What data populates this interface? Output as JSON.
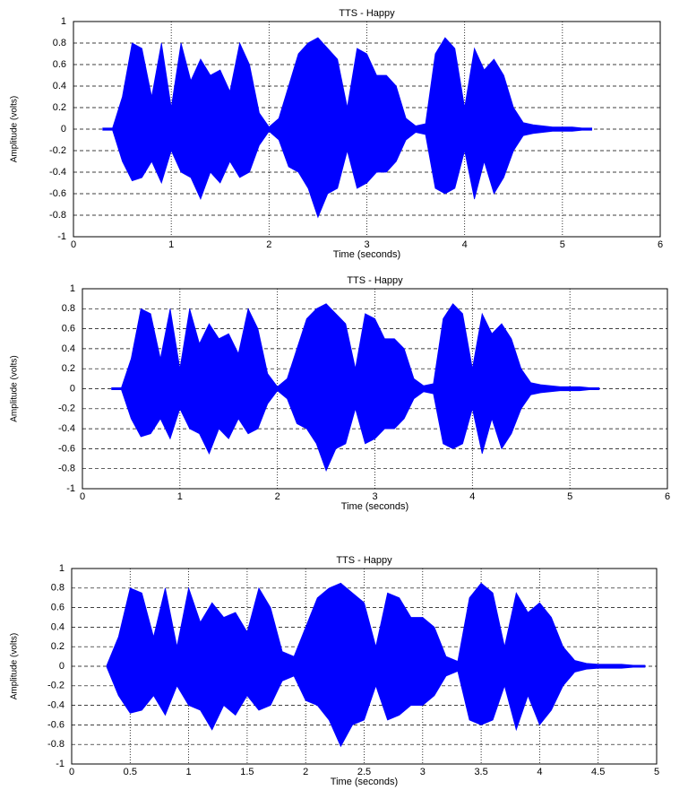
{
  "chart_data": [
    {
      "type": "area",
      "title": "TTS - Happy",
      "xlabel": "Time (seconds)",
      "ylabel": "Amplitude (volts)",
      "color": "#0000ff",
      "grid": true,
      "xlim": [
        0,
        6
      ],
      "ylim": [
        -1,
        1
      ],
      "xticks": [
        0,
        1,
        2,
        3,
        4,
        5,
        6
      ],
      "yticks": [
        -1,
        -0.8,
        -0.6,
        -0.4,
        -0.2,
        0,
        0.2,
        0.4,
        0.6,
        0.8,
        1
      ],
      "x": [
        0.3,
        0.4,
        0.5,
        0.6,
        0.7,
        0.8,
        0.9,
        1.0,
        1.1,
        1.2,
        1.3,
        1.4,
        1.5,
        1.6,
        1.7,
        1.8,
        1.9,
        2.0,
        2.1,
        2.2,
        2.3,
        2.4,
        2.5,
        2.6,
        2.7,
        2.8,
        2.9,
        3.0,
        3.1,
        3.2,
        3.3,
        3.4,
        3.5,
        3.6,
        3.7,
        3.8,
        3.9,
        4.0,
        4.1,
        4.2,
        4.3,
        4.4,
        4.5,
        4.6,
        4.7,
        4.8,
        4.9,
        5.0,
        5.1,
        5.2,
        5.3
      ],
      "upper": [
        0.01,
        0.01,
        0.3,
        0.8,
        0.75,
        0.3,
        0.8,
        0.2,
        0.8,
        0.45,
        0.65,
        0.5,
        0.55,
        0.35,
        0.8,
        0.6,
        0.15,
        0.02,
        0.1,
        0.4,
        0.7,
        0.8,
        0.85,
        0.75,
        0.65,
        0.2,
        0.75,
        0.7,
        0.5,
        0.5,
        0.4,
        0.1,
        0.03,
        0.05,
        0.7,
        0.85,
        0.75,
        0.2,
        0.75,
        0.55,
        0.65,
        0.5,
        0.2,
        0.06,
        0.04,
        0.03,
        0.02,
        0.02,
        0.02,
        0.01,
        0.01
      ],
      "lower": [
        -0.01,
        -0.01,
        -0.3,
        -0.48,
        -0.45,
        -0.3,
        -0.5,
        -0.2,
        -0.4,
        -0.45,
        -0.65,
        -0.4,
        -0.5,
        -0.3,
        -0.45,
        -0.4,
        -0.15,
        -0.02,
        -0.1,
        -0.35,
        -0.4,
        -0.55,
        -0.82,
        -0.6,
        -0.55,
        -0.2,
        -0.55,
        -0.5,
        -0.4,
        -0.4,
        -0.3,
        -0.1,
        -0.03,
        -0.05,
        -0.55,
        -0.6,
        -0.55,
        -0.2,
        -0.65,
        -0.3,
        -0.6,
        -0.45,
        -0.2,
        -0.06,
        -0.04,
        -0.03,
        -0.02,
        -0.02,
        -0.02,
        -0.01,
        -0.01
      ]
    },
    {
      "type": "area",
      "title": "TTS - Happy",
      "xlabel": "Time (seconds)",
      "ylabel": "Amplitude (volts)",
      "color": "#0000ff",
      "grid": true,
      "xlim": [
        0,
        6
      ],
      "ylim": [
        -1,
        1
      ],
      "xticks": [
        0,
        1,
        2,
        3,
        4,
        5,
        6
      ],
      "yticks": [
        -1,
        -0.8,
        -0.6,
        -0.4,
        -0.2,
        0,
        0.2,
        0.4,
        0.6,
        0.8,
        1
      ],
      "x": [
        0.3,
        0.4,
        0.5,
        0.6,
        0.7,
        0.8,
        0.9,
        1.0,
        1.1,
        1.2,
        1.3,
        1.4,
        1.5,
        1.6,
        1.7,
        1.8,
        1.9,
        2.0,
        2.1,
        2.2,
        2.3,
        2.4,
        2.5,
        2.6,
        2.7,
        2.8,
        2.9,
        3.0,
        3.1,
        3.2,
        3.3,
        3.4,
        3.5,
        3.6,
        3.7,
        3.8,
        3.9,
        4.0,
        4.1,
        4.2,
        4.3,
        4.4,
        4.5,
        4.6,
        4.7,
        4.8,
        4.9,
        5.0,
        5.1,
        5.2,
        5.3
      ],
      "upper": [
        0.01,
        0.01,
        0.3,
        0.8,
        0.75,
        0.3,
        0.8,
        0.2,
        0.8,
        0.45,
        0.65,
        0.5,
        0.55,
        0.35,
        0.8,
        0.6,
        0.15,
        0.02,
        0.1,
        0.4,
        0.7,
        0.8,
        0.85,
        0.75,
        0.65,
        0.2,
        0.75,
        0.7,
        0.5,
        0.5,
        0.4,
        0.1,
        0.03,
        0.05,
        0.7,
        0.85,
        0.75,
        0.2,
        0.75,
        0.55,
        0.65,
        0.5,
        0.2,
        0.06,
        0.04,
        0.03,
        0.02,
        0.02,
        0.02,
        0.01,
        0.01
      ],
      "lower": [
        -0.01,
        -0.01,
        -0.3,
        -0.48,
        -0.45,
        -0.3,
        -0.5,
        -0.2,
        -0.4,
        -0.45,
        -0.65,
        -0.4,
        -0.5,
        -0.3,
        -0.45,
        -0.4,
        -0.15,
        -0.02,
        -0.1,
        -0.35,
        -0.4,
        -0.55,
        -0.82,
        -0.6,
        -0.55,
        -0.2,
        -0.55,
        -0.5,
        -0.4,
        -0.4,
        -0.3,
        -0.1,
        -0.03,
        -0.05,
        -0.55,
        -0.6,
        -0.55,
        -0.2,
        -0.65,
        -0.3,
        -0.6,
        -0.45,
        -0.2,
        -0.06,
        -0.04,
        -0.03,
        -0.02,
        -0.02,
        -0.02,
        -0.01,
        -0.01
      ]
    },
    {
      "type": "area",
      "title": "TTS - Happy",
      "xlabel": "Time (seconds)",
      "ylabel": "Amplitude (volts)",
      "color": "#0000ff",
      "grid": true,
      "xlim": [
        0,
        5
      ],
      "ylim": [
        -1,
        1
      ],
      "xticks": [
        0,
        0.5,
        1,
        1.5,
        2,
        2.5,
        3,
        3.5,
        4,
        4.5,
        5
      ],
      "yticks": [
        -1,
        -0.8,
        -0.6,
        -0.4,
        -0.2,
        0,
        0.2,
        0.4,
        0.6,
        0.8,
        1
      ],
      "x": [
        0.3,
        0.4,
        0.5,
        0.6,
        0.7,
        0.8,
        0.9,
        1.0,
        1.1,
        1.2,
        1.3,
        1.4,
        1.5,
        1.6,
        1.7,
        1.8,
        1.9,
        2.0,
        2.1,
        2.2,
        2.3,
        2.4,
        2.5,
        2.6,
        2.7,
        2.8,
        2.9,
        3.0,
        3.1,
        3.2,
        3.3,
        3.4,
        3.5,
        3.6,
        3.7,
        3.8,
        3.9,
        4.0,
        4.1,
        4.2,
        4.3,
        4.4,
        4.5,
        4.6,
        4.7,
        4.8,
        4.9
      ],
      "upper": [
        0.01,
        0.3,
        0.8,
        0.75,
        0.3,
        0.8,
        0.2,
        0.8,
        0.45,
        0.65,
        0.5,
        0.55,
        0.35,
        0.8,
        0.6,
        0.15,
        0.1,
        0.4,
        0.7,
        0.8,
        0.85,
        0.75,
        0.65,
        0.2,
        0.75,
        0.7,
        0.5,
        0.5,
        0.4,
        0.1,
        0.05,
        0.7,
        0.85,
        0.75,
        0.2,
        0.75,
        0.55,
        0.65,
        0.5,
        0.2,
        0.06,
        0.03,
        0.02,
        0.02,
        0.02,
        0.01,
        0.01
      ],
      "lower": [
        -0.01,
        -0.3,
        -0.48,
        -0.45,
        -0.3,
        -0.5,
        -0.2,
        -0.4,
        -0.45,
        -0.65,
        -0.4,
        -0.5,
        -0.3,
        -0.45,
        -0.4,
        -0.15,
        -0.1,
        -0.35,
        -0.4,
        -0.55,
        -0.82,
        -0.6,
        -0.55,
        -0.2,
        -0.55,
        -0.5,
        -0.4,
        -0.4,
        -0.3,
        -0.1,
        -0.05,
        -0.55,
        -0.6,
        -0.55,
        -0.2,
        -0.65,
        -0.3,
        -0.6,
        -0.45,
        -0.2,
        -0.06,
        -0.03,
        -0.02,
        -0.02,
        -0.02,
        -0.01,
        -0.01
      ]
    }
  ]
}
